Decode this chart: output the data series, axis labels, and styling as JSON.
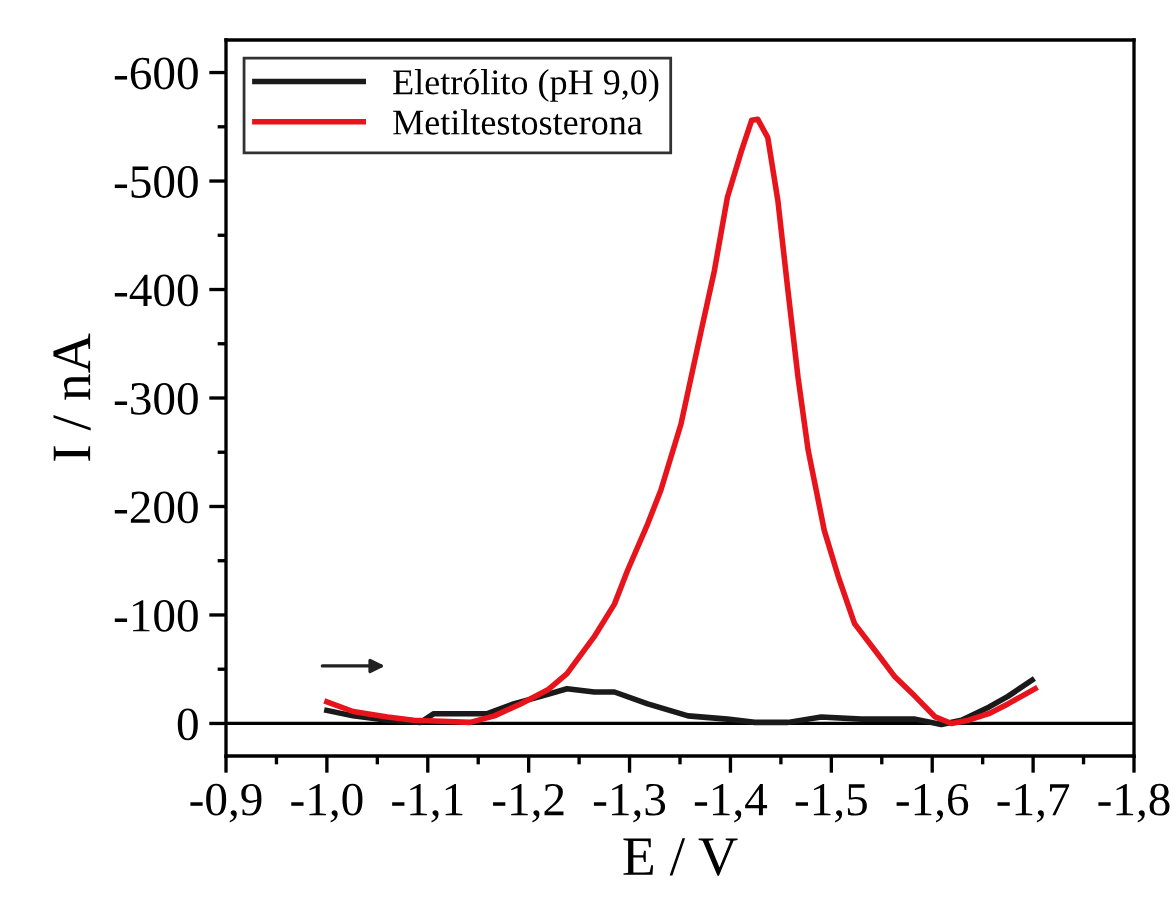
{
  "chart_data": {
    "type": "line",
    "xlabel": "E / V",
    "ylabel": "I / nA",
    "xlim": [
      -0.9,
      -1.8
    ],
    "ylim": [
      30,
      -630
    ],
    "xticks": [
      {
        "value": -0.9,
        "label": "-0,9"
      },
      {
        "value": -1.0,
        "label": "-1,0"
      },
      {
        "value": -1.1,
        "label": "-1,1"
      },
      {
        "value": -1.2,
        "label": "-1,2"
      },
      {
        "value": -1.3,
        "label": "-1,3"
      },
      {
        "value": -1.4,
        "label": "-1,4"
      },
      {
        "value": -1.5,
        "label": "-1,5"
      },
      {
        "value": -1.6,
        "label": "-1,6"
      },
      {
        "value": -1.7,
        "label": "-1,7"
      },
      {
        "value": -1.8,
        "label": "-1,8"
      }
    ],
    "yticks": [
      0,
      -100,
      -200,
      -300,
      -400,
      -500,
      -600
    ],
    "grid": false,
    "legend": "top left",
    "marker": "none",
    "line_style": "solid",
    "ref_lines": [
      {
        "axis": "y",
        "value": 0,
        "label": null,
        "color": "#000000"
      }
    ],
    "series": [
      {
        "name": "Eletrólito (pH 9,0)",
        "color": "#1a1a1a",
        "x": [
          -1.0,
          -1.026,
          -1.06,
          -1.093,
          -1.106,
          -1.159,
          -1.185,
          -1.212,
          -1.238,
          -1.265,
          -1.285,
          -1.318,
          -1.358,
          -1.397,
          -1.424,
          -1.457,
          -1.49,
          -1.53,
          -1.583,
          -1.609,
          -1.629,
          -1.656,
          -1.675,
          -1.699
        ],
        "values": [
          -12,
          -7,
          -3,
          -1,
          -9,
          -9,
          -18,
          -25,
          -32,
          -29,
          -29,
          -18,
          -7,
          -4,
          -1,
          -1,
          -6,
          -4,
          -4,
          1,
          -3,
          -15,
          -25,
          -40
        ]
      },
      {
        "name": "Metiltestosterona",
        "color": "#e8141c",
        "x": [
          -1.0,
          -1.026,
          -1.06,
          -1.086,
          -1.113,
          -1.142,
          -1.166,
          -1.192,
          -1.219,
          -1.238,
          -1.265,
          -1.285,
          -1.298,
          -1.318,
          -1.331,
          -1.351,
          -1.371,
          -1.384,
          -1.397,
          -1.411,
          -1.421,
          -1.427,
          -1.437,
          -1.447,
          -1.457,
          -1.467,
          -1.477,
          -1.493,
          -1.507,
          -1.523,
          -1.546,
          -1.563,
          -1.583,
          -1.603,
          -1.619,
          -1.636,
          -1.656,
          -1.675,
          -1.702
        ],
        "values": [
          -20,
          -11,
          -6,
          -3,
          -2,
          -1,
          -7,
          -18,
          -31,
          -46,
          -80,
          -110,
          -141,
          -184,
          -215,
          -276,
          -362,
          -417,
          -485,
          -528,
          -556,
          -557,
          -540,
          -482,
          -399,
          -319,
          -252,
          -178,
          -135,
          -92,
          -64,
          -43,
          -25,
          -6,
          0,
          -3,
          -9,
          -18,
          -32
        ]
      }
    ]
  }
}
